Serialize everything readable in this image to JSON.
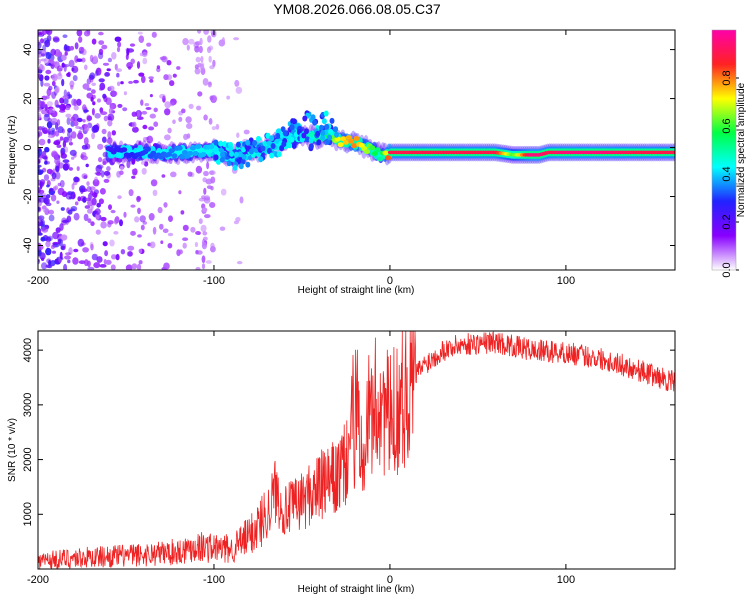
{
  "title": "YM08.2026.066.08.05.C37",
  "chart_data": [
    {
      "type": "heatmap",
      "title": "YM08.2026.066.08.05.C37",
      "xlabel": "Height of straight line (km)",
      "ylabel": "Frequency (Hz)",
      "xlim": [
        -200,
        162
      ],
      "ylim": [
        -50,
        48
      ],
      "xticks": [
        -200,
        -100,
        0,
        100
      ],
      "yticks": [
        -40,
        -20,
        0,
        20,
        40
      ],
      "colorbar": {
        "label": "Normalized spectral amplitude",
        "range": [
          0,
          1
        ],
        "ticks": [
          "0.0",
          "0.2",
          "0.4",
          "0.6",
          "0.8"
        ],
        "colors": [
          "#ffffff",
          "#8800ff",
          "#2222ff",
          "#00ffff",
          "#00ff44",
          "#ffff00",
          "#ff2222",
          "#ff00aa"
        ]
      },
      "ridge": {
        "x": [
          -160,
          -140,
          -120,
          -100,
          -90,
          -80,
          -70,
          -60,
          -50,
          -40,
          -35,
          -30,
          -20,
          -10,
          -5,
          0,
          20,
          40,
          60,
          70,
          80,
          85,
          90,
          100,
          120,
          140,
          162
        ],
        "y": [
          -2,
          -2,
          -2,
          -1,
          -4,
          -2,
          0,
          3,
          5,
          4,
          5,
          3,
          2,
          -1,
          -3,
          -2,
          -2,
          -2,
          -2,
          -3,
          -3,
          -3,
          -2,
          -2,
          -2,
          -2,
          -2
        ],
        "amplitude": [
          0.25,
          0.3,
          0.35,
          0.4,
          0.3,
          0.35,
          0.4,
          0.4,
          0.45,
          0.5,
          0.55,
          0.7,
          0.8,
          0.6,
          0.5,
          0.9,
          0.9,
          0.9,
          0.9,
          0.6,
          0.95,
          0.95,
          0.9,
          0.95,
          0.95,
          0.9,
          0.9
        ]
      },
      "noise_region_x": [
        -200,
        -80
      ]
    },
    {
      "type": "line",
      "xlabel": "Height of straight line (km)",
      "ylabel": "SNR (10 * v/v)",
      "xlim": [
        -200,
        162
      ],
      "ylim": [
        0,
        4350
      ],
      "xticks": [
        -200,
        -100,
        0,
        100
      ],
      "yticks": [
        1000,
        2000,
        3000,
        4000
      ],
      "series": [
        {
          "name": "SNR",
          "color": "#ee2222",
          "x": [
            -200,
            -180,
            -160,
            -140,
            -120,
            -110,
            -100,
            -90,
            -80,
            -70,
            -65,
            -60,
            -50,
            -40,
            -30,
            -25,
            -22,
            -20,
            -18,
            -15,
            -10,
            -5,
            0,
            10,
            20,
            30,
            40,
            60,
            80,
            100,
            120,
            140,
            162
          ],
          "y": [
            150,
            200,
            230,
            260,
            320,
            420,
            380,
            360,
            600,
            1000,
            1450,
            1050,
            1250,
            1500,
            1650,
            1900,
            2600,
            2300,
            2700,
            2500,
            2900,
            3100,
            2700,
            3400,
            3750,
            4000,
            4100,
            4150,
            4000,
            3950,
            3850,
            3650,
            3400
          ]
        }
      ]
    }
  ]
}
